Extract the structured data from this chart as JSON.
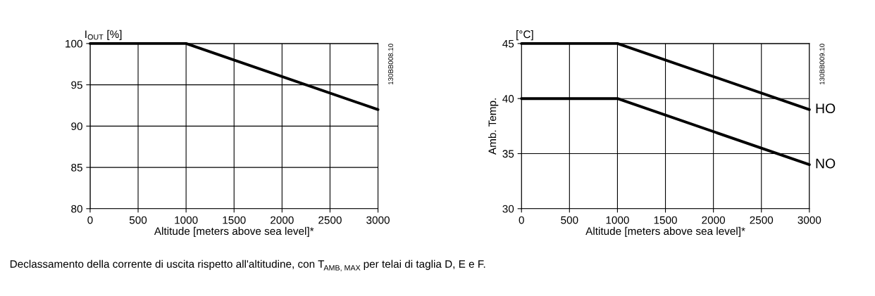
{
  "chart_data": [
    {
      "type": "line",
      "ylabel": "I$_{OUT}$ [%]",
      "xlabel": "Altitude [meters above sea level]*",
      "x": [
        0,
        1000,
        3000
      ],
      "series": [
        {
          "color": "#000000",
          "values": [
            100,
            100,
            92
          ]
        }
      ],
      "xlim": [
        0,
        3000
      ],
      "xticks": [
        0,
        500,
        1000,
        1500,
        2000,
        2500,
        3000
      ],
      "ylim": [
        80,
        100
      ],
      "yticks": [
        80,
        85,
        90,
        95,
        100
      ],
      "grid": true,
      "legend": false,
      "annotations": [
        "130BB008.10",
        "Declassamento della corrente di uscita rispetto all'altitudine, con T$_{AMB, MAX}$ per telai di taglia D, E e F."
      ]
    },
    {
      "type": "line",
      "ylabel": "Amb. Temp.",
      "xlabel": "Altitude [meters above sea level]*",
      "x": [
        0,
        1000,
        3000
      ],
      "series": [
        {
          "name": "HO",
          "color": "#000000",
          "values": [
            45,
            45,
            39
          ]
        },
        {
          "name": "NO",
          "color": "#000000",
          "values": [
            40,
            40,
            34
          ]
        }
      ],
      "xlim": [
        0,
        3000
      ],
      "xticks": [
        0,
        500,
        1000,
        1500,
        2000,
        2500,
        3000
      ],
      "ylim": [
        30,
        45
      ],
      "yticks": [
        30,
        35,
        40,
        45
      ],
      "grid": true,
      "legend": false,
      "annotations": [
        "130BB009.10",
        "[°C]"
      ]
    }
  ]
}
